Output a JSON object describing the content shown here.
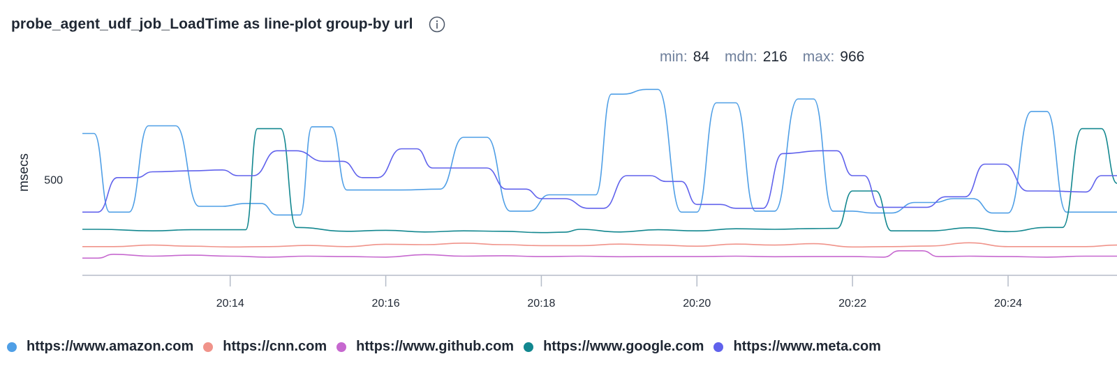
{
  "header": {
    "title": "probe_agent_udf_job_LoadTime as line-plot group-by url",
    "info_icon": "info-circle-icon"
  },
  "stats": {
    "min_label": "min:",
    "min_value": "84",
    "mdn_label": "mdn:",
    "mdn_value": "216",
    "max_label": "max:",
    "max_value": "966"
  },
  "chart_data": {
    "type": "line",
    "ylabel": "msecs",
    "xlabel": "",
    "y_ticks": [
      500
    ],
    "x_ticks": [
      "20:14",
      "20:16",
      "20:18",
      "20:20",
      "20:22",
      "20:24"
    ],
    "x_tick_minutes": [
      14,
      16,
      18,
      20,
      22,
      24
    ],
    "xlim": [
      12.1,
      25.4
    ],
    "ylim": [
      0,
      1000
    ],
    "legend_position": "bottom",
    "series": [
      {
        "name": "https://www.amazon.com",
        "color": "#4f9fe6",
        "x": [
          12.1,
          12.25,
          12.45,
          12.7,
          12.95,
          13.3,
          13.6,
          13.9,
          14.2,
          14.4,
          14.6,
          14.9,
          15.05,
          15.3,
          15.5,
          15.75,
          16.2,
          16.7,
          17.0,
          17.3,
          17.6,
          17.85,
          18.1,
          18.4,
          18.7,
          18.9,
          19.05,
          19.35,
          19.5,
          19.8,
          20.0,
          20.25,
          20.5,
          20.75,
          21.0,
          21.3,
          21.5,
          21.75,
          22.0,
          22.25,
          22.5,
          22.8,
          23.05,
          23.3,
          23.55,
          23.8,
          24.0,
          24.3,
          24.5,
          24.75,
          24.95,
          25.2,
          25.4
        ],
        "y": [
          740,
          740,
          330,
          330,
          780,
          780,
          360,
          360,
          375,
          375,
          315,
          315,
          775,
          775,
          445,
          445,
          445,
          450,
          720,
          720,
          335,
          335,
          420,
          420,
          420,
          945,
          945,
          970,
          970,
          330,
          330,
          900,
          900,
          335,
          335,
          920,
          920,
          335,
          335,
          325,
          325,
          380,
          380,
          400,
          400,
          325,
          325,
          855,
          855,
          330,
          330,
          330,
          330
        ]
      },
      {
        "name": "https://cnn.com",
        "color": "#f0938a",
        "x": [
          12.1,
          12.5,
          13.0,
          13.5,
          14.0,
          14.5,
          15.0,
          15.5,
          16.0,
          16.5,
          17.0,
          17.5,
          18.0,
          18.5,
          19.0,
          19.5,
          20.0,
          20.5,
          21.0,
          21.5,
          22.0,
          22.5,
          23.0,
          23.5,
          24.0,
          24.5,
          25.0,
          25.4
        ],
        "y": [
          150,
          150,
          158,
          152,
          148,
          150,
          156,
          150,
          162,
          160,
          168,
          160,
          155,
          155,
          163,
          158,
          152,
          163,
          158,
          165,
          148,
          150,
          153,
          170,
          150,
          150,
          150,
          158
        ]
      },
      {
        "name": "https://www.github.com",
        "color": "#c668cf",
        "x": [
          12.1,
          12.3,
          12.5,
          13.0,
          13.5,
          14.0,
          14.5,
          15.0,
          15.5,
          16.0,
          16.5,
          17.0,
          17.5,
          18.0,
          18.5,
          19.0,
          19.5,
          20.0,
          20.5,
          21.0,
          21.5,
          22.0,
          22.4,
          22.6,
          22.9,
          23.1,
          23.5,
          24.0,
          24.5,
          25.0,
          25.4
        ],
        "y": [
          90,
          90,
          110,
          100,
          105,
          100,
          95,
          100,
          98,
          95,
          108,
          100,
          102,
          98,
          100,
          97,
          98,
          98,
          100,
          97,
          98,
          98,
          95,
          128,
          128,
          98,
          100,
          98,
          95,
          100,
          100
        ]
      },
      {
        "name": "https://www.google.com",
        "color": "#12878f",
        "x": [
          12.1,
          12.3,
          13.0,
          13.5,
          14.0,
          14.2,
          14.35,
          14.65,
          14.85,
          15.5,
          16.0,
          16.5,
          17.0,
          17.5,
          18.0,
          18.3,
          18.5,
          19.0,
          19.5,
          20.0,
          20.5,
          21.0,
          21.5,
          21.8,
          22.0,
          22.3,
          22.5,
          22.75,
          23.0,
          23.5,
          24.0,
          24.5,
          24.7,
          24.95,
          25.2,
          25.4
        ],
        "y": [
          240,
          240,
          232,
          238,
          238,
          238,
          765,
          765,
          250,
          230,
          235,
          226,
          232,
          230,
          223,
          225,
          240,
          226,
          238,
          232,
          243,
          240,
          244,
          245,
          440,
          440,
          232,
          232,
          232,
          248,
          228,
          250,
          250,
          765,
          765,
          480
        ]
      },
      {
        "name": "https://www.meta.com",
        "color": "#6062ec",
        "x": [
          12.1,
          12.3,
          12.55,
          12.8,
          13.0,
          13.5,
          13.9,
          14.1,
          14.3,
          14.6,
          14.85,
          15.2,
          15.45,
          15.7,
          15.9,
          16.2,
          16.4,
          16.6,
          17.0,
          17.3,
          17.55,
          17.8,
          18.0,
          18.3,
          18.6,
          18.8,
          19.1,
          19.4,
          19.6,
          19.8,
          20.0,
          20.3,
          20.5,
          20.85,
          21.1,
          21.6,
          21.8,
          22.0,
          22.15,
          22.35,
          22.6,
          22.95,
          23.2,
          23.45,
          23.7,
          23.95,
          24.25,
          24.5,
          25.0,
          25.2,
          25.4
        ],
        "y": [
          330,
          330,
          510,
          510,
          540,
          545,
          550,
          520,
          520,
          650,
          650,
          595,
          595,
          510,
          510,
          660,
          660,
          560,
          560,
          560,
          450,
          450,
          400,
          400,
          350,
          350,
          520,
          520,
          490,
          490,
          370,
          370,
          350,
          350,
          635,
          650,
          650,
          520,
          520,
          355,
          355,
          355,
          410,
          410,
          580,
          580,
          440,
          440,
          435,
          520,
          520
        ]
      }
    ]
  }
}
